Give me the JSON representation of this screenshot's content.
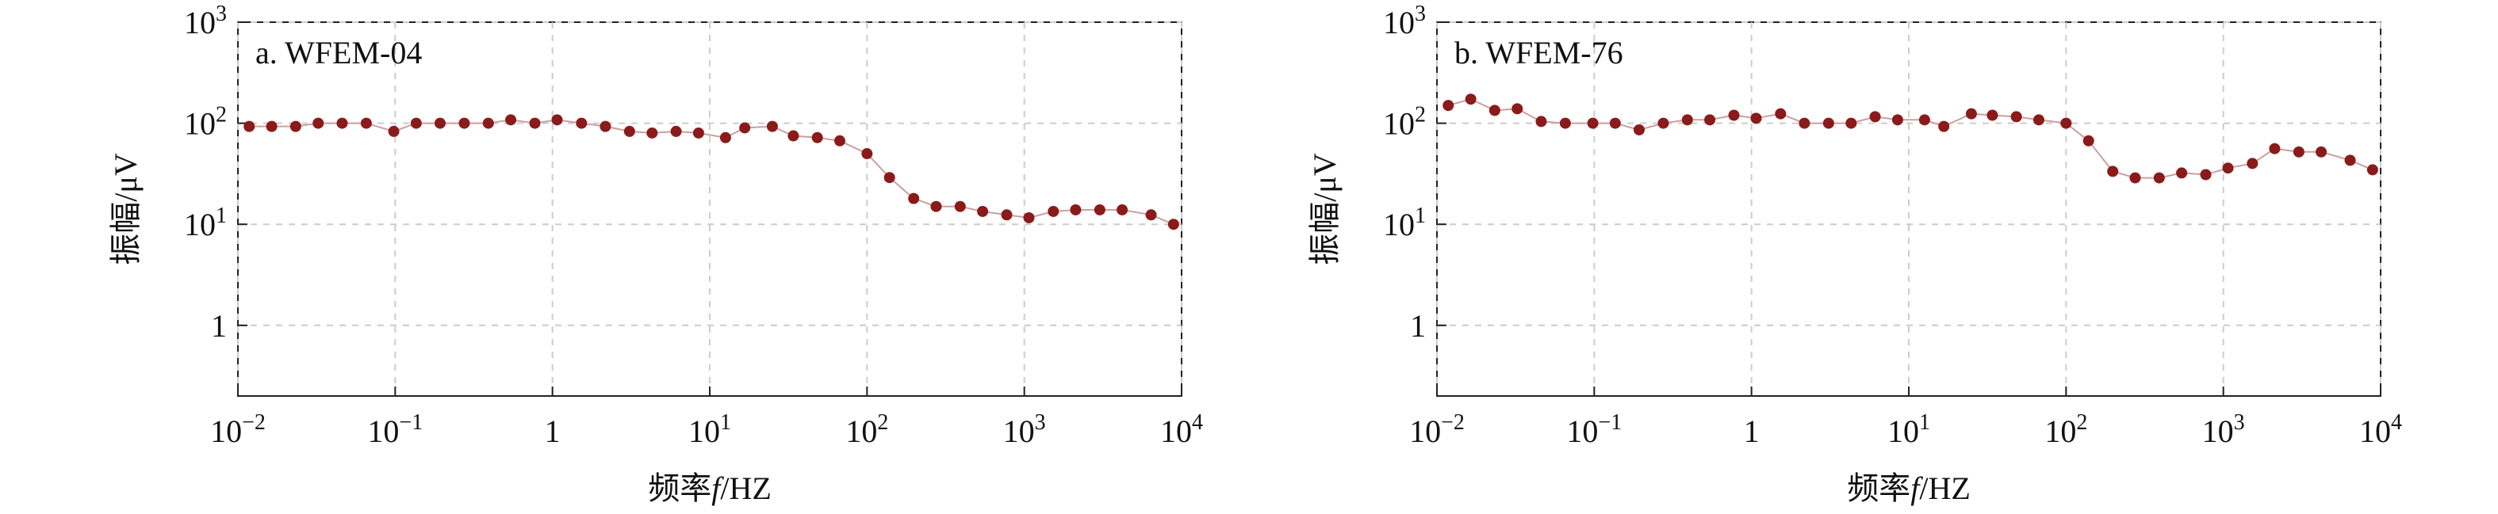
{
  "chart_data": [
    {
      "type": "line",
      "title": "a. WFEM-04",
      "x_label": "频率f/HZ",
      "y_label": "振幅/μV",
      "log_x": true,
      "log_y": true,
      "grid": true,
      "xlim": [
        0.01,
        10000
      ],
      "ylim": [
        0.2,
        1000
      ],
      "xticks": [
        {
          "value": 0.01,
          "label": "10−2"
        },
        {
          "value": 0.1,
          "label": "10−1"
        },
        1,
        {
          "value": 10,
          "label": "101"
        },
        {
          "value": 100,
          "label": "102"
        },
        {
          "value": 1000,
          "label": "103"
        },
        {
          "value": 10000,
          "label": "104"
        }
      ],
      "yticks": [
        1,
        {
          "value": 10,
          "label": "101"
        },
        {
          "value": 100,
          "label": "102"
        },
        {
          "value": 1000,
          "label": "103"
        }
      ],
      "x": [
        0.0118,
        0.0164,
        0.0233,
        0.0324,
        0.046,
        0.0655,
        0.098,
        0.136,
        0.193,
        0.275,
        0.391,
        0.543,
        0.773,
        1.07,
        1.53,
        2.17,
        3.09,
        4.3,
        6.11,
        8.49,
        12.6,
        16.7,
        25,
        34,
        48.3,
        67.1,
        100,
        139,
        198,
        275,
        391,
        543,
        773,
        1070,
        1530,
        2120,
        3020,
        4190,
        6400,
        8890
      ],
      "series": [
        {
          "color": "#8b1a1a",
          "values": [
            93,
            93,
            93,
            100,
            100,
            100,
            83,
            100,
            100,
            100,
            100,
            108,
            100,
            108,
            100,
            93,
            83,
            80,
            83,
            80,
            72,
            90,
            93,
            75,
            72,
            67,
            50,
            29,
            18,
            15,
            15,
            13.4,
            12.4,
            11.6,
            13.4,
            13.9,
            13.9,
            13.9,
            12.4,
            10
          ]
        }
      ]
    },
    {
      "type": "line",
      "title": "b. WFEM-76",
      "x_label": "频率f/HZ",
      "y_label": "振幅/μV",
      "log_x": true,
      "log_y": true,
      "grid": true,
      "xlim": [
        0.01,
        10000
      ],
      "ylim": [
        0.2,
        1000
      ],
      "xticks": [
        {
          "value": 0.01,
          "label": "10−2"
        },
        {
          "value": 0.1,
          "label": "10−1"
        },
        1,
        {
          "value": 10,
          "label": "101"
        },
        {
          "value": 100,
          "label": "102"
        },
        {
          "value": 1000,
          "label": "103"
        },
        {
          "value": 10000,
          "label": "104"
        }
      ],
      "yticks": [
        1,
        {
          "value": 10,
          "label": "101"
        },
        {
          "value": 100,
          "label": "102"
        },
        {
          "value": 1000,
          "label": "103"
        }
      ],
      "x": [
        0.0118,
        0.0164,
        0.0233,
        0.0324,
        0.046,
        0.0655,
        0.098,
        0.136,
        0.193,
        0.275,
        0.391,
        0.543,
        0.773,
        1.07,
        1.53,
        2.17,
        3.09,
        4.3,
        6.11,
        8.49,
        12.6,
        16.7,
        25,
        34,
        48.3,
        67.1,
        100,
        139,
        198,
        275,
        391,
        543,
        773,
        1070,
        1530,
        2120,
        3020,
        4190,
        6400,
        8890
      ],
      "series": [
        {
          "color": "#8b1a1a",
          "values": [
            150,
            173,
            134,
            139,
            104,
            100,
            100,
            100,
            86,
            100,
            108,
            108,
            120,
            112,
            124,
            100,
            100,
            100,
            116,
            108,
            108,
            93,
            124,
            120,
            116,
            108,
            100,
            67,
            33.4,
            28.8,
            28.8,
            32.2,
            31,
            36,
            40,
            56,
            52,
            52,
            43,
            34.6
          ]
        }
      ]
    }
  ]
}
